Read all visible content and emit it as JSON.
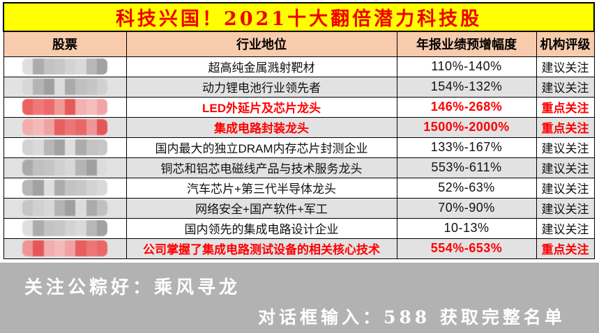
{
  "title": "科技兴国！2021十大翻倍潜力科技股",
  "columns": [
    "股票",
    "行业地位",
    "年报业绩预增幅度",
    "机构评级"
  ],
  "rows": [
    {
      "stock": "[已打码]",
      "position": "超高纯金属溅射靶材",
      "growth": "110%-140%",
      "rating": "建议关注",
      "highlight": false,
      "redaction": "gray"
    },
    {
      "stock": "[已打码]",
      "position": "动力锂电池行业领先者",
      "growth": "154%-132%",
      "rating": "建议关注",
      "highlight": false,
      "redaction": "gray"
    },
    {
      "stock": "[已打码]",
      "position": "LED外延片及芯片龙头",
      "growth": "146%-268%",
      "rating": "重点关注",
      "highlight": true,
      "redaction": "red"
    },
    {
      "stock": "[已打码]",
      "position": "集成电路封装龙头",
      "growth": "1500%-2000%",
      "rating": "重点关注",
      "highlight": true,
      "redaction": "red"
    },
    {
      "stock": "[已打码]",
      "position": "国内最大的独立DRAM内存芯片封测企业",
      "growth": "133%-167%",
      "rating": "建议关注",
      "highlight": false,
      "redaction": "gray"
    },
    {
      "stock": "[已打码]",
      "position": "铜芯和铝芯电磁线产品与技术服务龙头",
      "growth": "553%-611%",
      "rating": "建议关注",
      "highlight": false,
      "redaction": "gray"
    },
    {
      "stock": "[已打码]",
      "position": "汽车芯片+第三代半导体龙头",
      "growth": "52%-63%",
      "rating": "建议关注",
      "highlight": false,
      "redaction": "gray"
    },
    {
      "stock": "[已打码]",
      "position": "网络安全+国产软件+军工",
      "growth": "70%-90%",
      "rating": "建议关注",
      "highlight": false,
      "redaction": "gray"
    },
    {
      "stock": "[已打码]",
      "position": "国内领先的集成电路设计企业",
      "growth": "10-13%",
      "rating": "建议关注",
      "highlight": false,
      "redaction": "gray"
    },
    {
      "stock": "[已打码]",
      "position": "公司掌握了集成电路测试设备的相关核心技术",
      "growth": "554%-653%",
      "rating": "重点关注",
      "highlight": true,
      "redaction": "red"
    }
  ],
  "footer": {
    "line1": "关注公粽好：乘风寻龙",
    "line2": "对话框输入：588 获取完整名单"
  },
  "colors": {
    "title_bg": "#ffff00",
    "title_text": "#ee0000",
    "header_bg": "#f8cbad",
    "row_alt_bg": "#e2e2e2",
    "highlight_text": "#fe0000",
    "footer_bg": "#b2b2b2",
    "footer_text": "#ffffff"
  },
  "redaction_palettes": {
    "gray": [
      "#dcdcdc",
      "#c2c2c2",
      "#b0b0b0",
      "#a4a4a4",
      "#cfcfcf",
      "#989898",
      "#bdbdbd",
      "#d6d6d6"
    ],
    "red": [
      "#f6b6b6",
      "#ee6b6b",
      "#e64848",
      "#f29c9c",
      "#ec5a5a",
      "#f4a8a8",
      "#e85050",
      "#f08e8e"
    ]
  }
}
